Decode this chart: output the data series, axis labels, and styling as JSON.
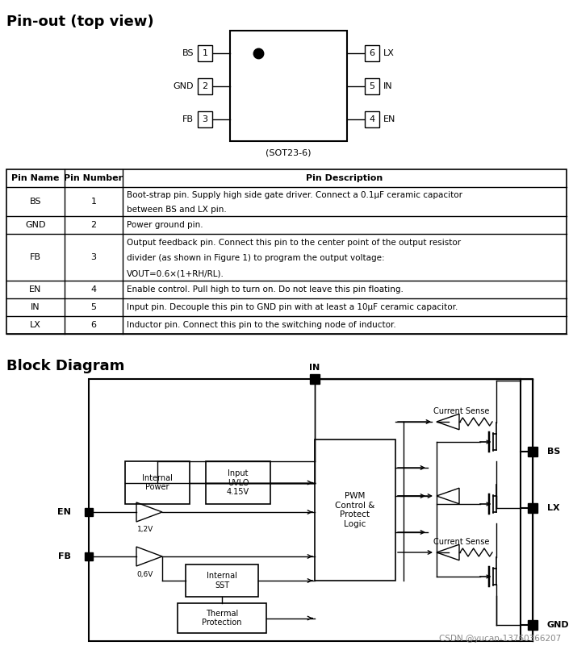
{
  "title_pinout": "Pin-out (top view)",
  "title_block": "Block Diagram",
  "sot23_label": "(SOT23-6)",
  "table_headers": [
    "Pin Name",
    "Pin Number",
    "Pin Description"
  ],
  "table_rows": [
    [
      "BS",
      "1",
      "Boot-strap pin. Supply high side gate driver. Connect a 0.1μF ceramic capacitor\nbetween BS and LX pin."
    ],
    [
      "GND",
      "2",
      "Power ground pin."
    ],
    [
      "FB",
      "3",
      "Output feedback pin. Connect this pin to the center point of the output resistor\ndivider (as shown in Figure 1) to program the output voltage:\nVOUT=0.6×(1+RH/RL)."
    ],
    [
      "EN",
      "4",
      "Enable control. Pull high to turn on. Do not leave this pin floating."
    ],
    [
      "IN",
      "5",
      "Input pin. Decouple this pin to GND pin with at least a 10μF ceramic capacitor."
    ],
    [
      "LX",
      "6",
      "Inductor pin. Connect this pin to the switching node of inductor."
    ]
  ],
  "watermark": "CSDN @yucan-13760366207",
  "bg_color": "#ffffff",
  "line_color": "#000000",
  "text_color": "#000000"
}
